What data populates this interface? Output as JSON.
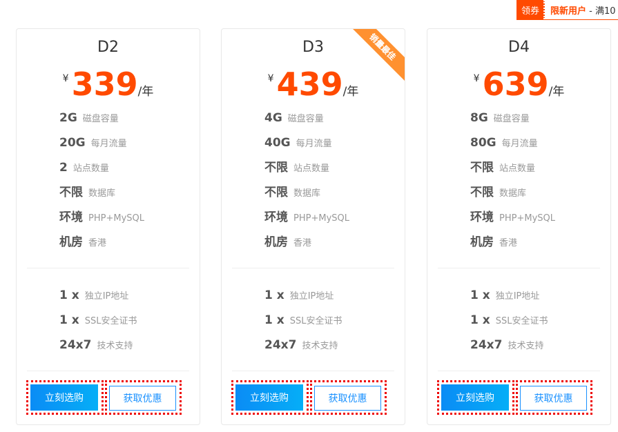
{
  "coupon": {
    "tag": "领券",
    "highlight": "限新用户",
    "text": " - 满10"
  },
  "plans": [
    {
      "name": "D2",
      "currency": "¥",
      "price": "339",
      "unit": "/年",
      "ribbon": "",
      "features": [
        [
          "2G",
          "磁盘容量"
        ],
        [
          "20G",
          "每月流量"
        ],
        [
          "2",
          "站点数量"
        ],
        [
          "不限",
          "数据库"
        ],
        [
          "环境",
          "PHP+MySQL"
        ],
        [
          "机房",
          "香港"
        ]
      ],
      "extras": [
        [
          "1 x",
          "独立IP地址"
        ],
        [
          "1 x",
          "SSL安全证书"
        ],
        [
          "24x7",
          "技术支持"
        ]
      ],
      "buy": "立刻选购",
      "discount": "获取优惠"
    },
    {
      "name": "D3",
      "currency": "¥",
      "price": "439",
      "unit": "/年",
      "ribbon": "销量最佳",
      "features": [
        [
          "4G",
          "磁盘容量"
        ],
        [
          "40G",
          "每月流量"
        ],
        [
          "不限",
          "站点数量"
        ],
        [
          "不限",
          "数据库"
        ],
        [
          "环境",
          "PHP+MySQL"
        ],
        [
          "机房",
          "香港"
        ]
      ],
      "extras": [
        [
          "1 x",
          "独立IP地址"
        ],
        [
          "1 x",
          "SSL安全证书"
        ],
        [
          "24x7",
          "技术支持"
        ]
      ],
      "buy": "立刻选购",
      "discount": "获取优惠"
    },
    {
      "name": "D4",
      "currency": "¥",
      "price": "639",
      "unit": "/年",
      "ribbon": "",
      "features": [
        [
          "8G",
          "磁盘容量"
        ],
        [
          "80G",
          "每月流量"
        ],
        [
          "不限",
          "站点数量"
        ],
        [
          "不限",
          "数据库"
        ],
        [
          "环境",
          "PHP+MySQL"
        ],
        [
          "机房",
          "香港"
        ]
      ],
      "extras": [
        [
          "1 x",
          "独立IP地址"
        ],
        [
          "1 x",
          "SSL安全证书"
        ],
        [
          "24x7",
          "技术支持"
        ]
      ],
      "buy": "立刻选购",
      "discount": "获取优惠"
    }
  ]
}
